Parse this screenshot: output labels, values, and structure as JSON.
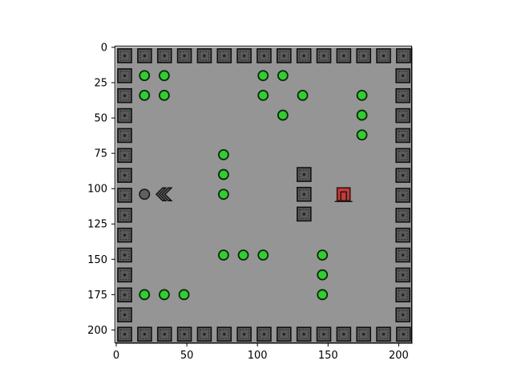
{
  "plot": {
    "x_axis": {
      "range": [
        0,
        210
      ],
      "ticks": [
        0,
        50,
        100,
        150,
        200
      ],
      "labels": [
        "0",
        "50",
        "100",
        "150",
        "200"
      ]
    },
    "y_axis": {
      "range": [
        0,
        210
      ],
      "inverted": true,
      "ticks": [
        0,
        25,
        50,
        75,
        100,
        125,
        150,
        175,
        200
      ],
      "labels": [
        "0",
        "25",
        "50",
        "75",
        "100",
        "125",
        "150",
        "175",
        "200"
      ]
    }
  },
  "colors": {
    "floor": "#959595",
    "wall_fill": "#5a5a5a",
    "wall_edge": "#111111",
    "gem_fill": "#33cc33",
    "gem_edge": "#0b2a0b",
    "exit_fill": "#c83a3a",
    "boulder_fill": "#606060",
    "player_fill": "#5c5c5c"
  },
  "game": {
    "walls_inner": [
      [
        133,
        90
      ],
      [
        133,
        104
      ],
      [
        133,
        118
      ]
    ],
    "gems": [
      [
        20,
        20
      ],
      [
        34,
        20
      ],
      [
        104,
        20
      ],
      [
        118,
        20
      ],
      [
        20,
        34
      ],
      [
        34,
        34
      ],
      [
        104,
        34
      ],
      [
        132,
        34
      ],
      [
        174,
        34
      ],
      [
        118,
        48
      ],
      [
        174,
        48
      ],
      [
        174,
        62
      ],
      [
        76,
        76
      ],
      [
        76,
        90
      ],
      [
        76,
        104
      ],
      [
        76,
        147
      ],
      [
        90,
        147
      ],
      [
        104,
        147
      ],
      [
        146,
        147
      ],
      [
        146,
        161
      ],
      [
        20,
        175
      ],
      [
        34,
        175
      ],
      [
        48,
        175
      ],
      [
        146,
        175
      ]
    ],
    "boulders": [
      [
        20,
        104
      ]
    ],
    "player": {
      "x": 34,
      "y": 104,
      "facing": "left",
      "icon": "double-chevron-left"
    },
    "exit": {
      "x": 161,
      "y": 104,
      "icon": "exit-door"
    }
  }
}
